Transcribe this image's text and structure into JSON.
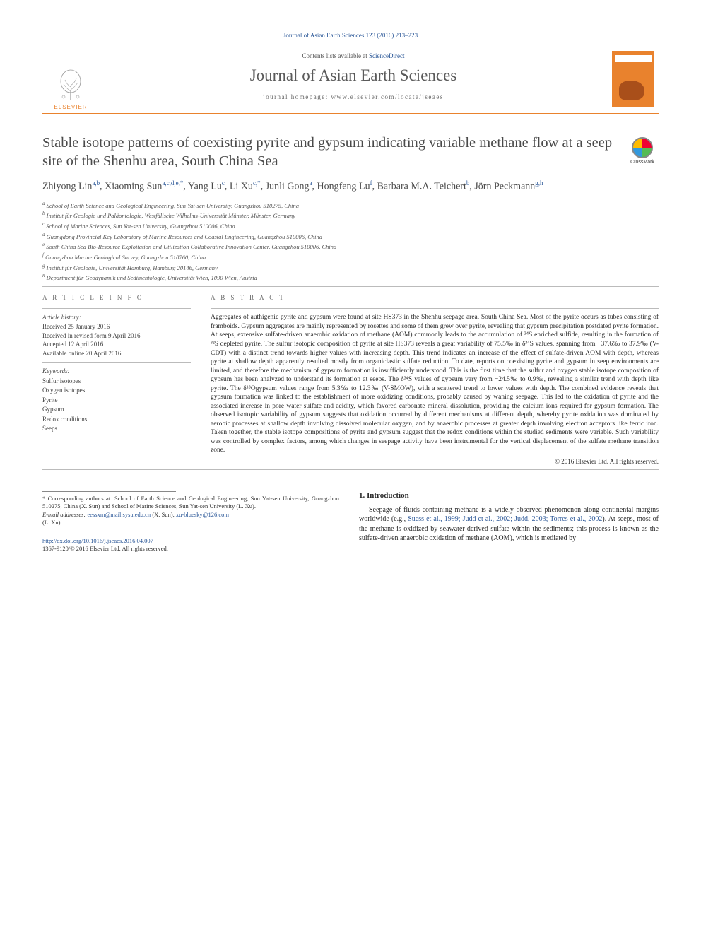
{
  "citation": "Journal of Asian Earth Sciences 123 (2016) 213–223",
  "banner": {
    "contents_prefix": "Contents lists available at ",
    "contents_link": "ScienceDirect",
    "journal_name": "Journal of Asian Earth Sciences",
    "homepage_prefix": "journal homepage: ",
    "homepage_url": "www.elsevier.com/locate/jseaes",
    "elsevier_label": "ELSEVIER"
  },
  "crossmark_label": "CrossMark",
  "title": "Stable isotope patterns of coexisting pyrite and gypsum indicating variable methane flow at a seep site of the Shenhu area, South China Sea",
  "authors_html": "Zhiyong Lin<sup>a,b</sup>, Xiaoming Sun<sup>a,c,d,e,*</sup>, Yang Lu<sup>c</sup>, Li Xu<sup>c,*</sup>, Junli Gong<sup>a</sup>, Hongfeng Lu<sup>f</sup>, Barbara M.A. Teichert<sup>b</sup>, Jörn Peckmann<sup>g,h</sup>",
  "affiliations": [
    "a School of Earth Science and Geological Engineering, Sun Yat-sen University, Guangzhou 510275, China",
    "b Institut für Geologie und Paläontologie, Westfälische Wilhelms-Universität Münster, Münster, Germany",
    "c School of Marine Sciences, Sun Yat-sen University, Guangzhou 510006, China",
    "d Guangdong Provincial Key Laboratory of Marine Resources and Coastal Engineering, Guangzhou 510006, China",
    "e South China Sea Bio-Resource Exploitation and Utilization Collaborative Innovation Center, Guangzhou 510006, China",
    "f Guangzhou Marine Geological Survey, Guangzhou 510760, China",
    "g Institut für Geologie, Universität Hamburg, Hamburg 20146, Germany",
    "h Department für Geodynamik und Sedimentologie, Universität Wien, 1090 Wien, Austria"
  ],
  "article_info_label": "A R T I C L E   I N F O",
  "abstract_label": "A B S T R A C T",
  "history": {
    "header": "Article history:",
    "lines": [
      "Received 25 January 2016",
      "Received in revised form 9 April 2016",
      "Accepted 12 April 2016",
      "Available online 20 April 2016"
    ]
  },
  "keywords": {
    "header": "Keywords:",
    "items": [
      "Sulfur isotopes",
      "Oxygen isotopes",
      "Pyrite",
      "Gypsum",
      "Redox conditions",
      "Seeps"
    ]
  },
  "abstract": "Aggregates of authigenic pyrite and gypsum were found at site HS373 in the Shenhu seepage area, South China Sea. Most of the pyrite occurs as tubes consisting of framboids. Gypsum aggregates are mainly represented by rosettes and some of them grew over pyrite, revealing that gypsum precipitation postdated pyrite formation. At seeps, extensive sulfate-driven anaerobic oxidation of methane (AOM) commonly leads to the accumulation of ³⁴S enriched sulfide, resulting in the formation of ³²S depleted pyrite. The sulfur isotopic composition of pyrite at site HS373 reveals a great variability of 75.5‰ in δ³⁴S values, spanning from −37.6‰ to 37.9‰ (V-CDT) with a distinct trend towards higher values with increasing depth. This trend indicates an increase of the effect of sulfate-driven AOM with depth, whereas pyrite at shallow depth apparently resulted mostly from organiclastic sulfate reduction. To date, reports on coexisting pyrite and gypsum in seep environments are limited, and therefore the mechanism of gypsum formation is insufficiently understood. This is the first time that the sulfur and oxygen stable isotope composition of gypsum has been analyzed to understand its formation at seeps. The δ³⁴S values of gypsum vary from −24.5‰ to 0.9‰, revealing a similar trend with depth like pyrite. The δ¹⁸Ogypsum values range from 5.3‰ to 12.3‰ (V-SMOW), with a scattered trend to lower values with depth. The combined evidence reveals that gypsum formation was linked to the establishment of more oxidizing conditions, probably caused by waning seepage. This led to the oxidation of pyrite and the associated increase in pore water sulfate and acidity, which favored carbonate mineral dissolution, providing the calcium ions required for gypsum formation. The observed isotopic variability of gypsum suggests that oxidation occurred by different mechanisms at different depth, whereby pyrite oxidation was dominated by aerobic processes at shallow depth involving dissolved molecular oxygen, and by anaerobic processes at greater depth involving electron acceptors like ferric iron. Taken together, the stable isotope compositions of pyrite and gypsum suggest that the redox conditions within the studied sediments were variable. Such variability was controlled by complex factors, among which changes in seepage activity have been instrumental for the vertical displacement of the sulfate methane transition zone.",
  "copyright": "© 2016 Elsevier Ltd. All rights reserved.",
  "intro": {
    "heading": "1. Introduction",
    "para": "Seepage of fluids containing methane is a widely observed phenomenon along continental margins worldwide (e.g., ",
    "cites": "Suess et al., 1999; Judd et al., 2002; Judd, 2003; Torres et al., 2002",
    "para2": "). At seeps, most of the methane is oxidized by seawater-derived sulfate within the sediments; this process is known as the sulfate-driven anaerobic oxidation of methane (AOM), which is mediated by"
  },
  "footnote": {
    "star": "* Corresponding authors at: School of Earth Science and Geological Engineering, Sun Yat-sen University, Guangzhou 510275, China (X. Sun) and School of Marine Sciences, Sun Yat-sen University (L. Xu).",
    "email_label": "E-mail addresses: ",
    "email1": "eessxm@mail.sysu.edu.cn",
    "email1_who": " (X. Sun), ",
    "email2": "xu-bluesky@126.com",
    "email2_who": " (L. Xu)."
  },
  "footer": {
    "doi_url": "http://dx.doi.org/10.1016/j.jseaes.2016.04.007",
    "issn_line": "1367-9120/© 2016 Elsevier Ltd. All rights reserved."
  },
  "colors": {
    "link": "#2c5898",
    "accent": "#e9822d"
  }
}
